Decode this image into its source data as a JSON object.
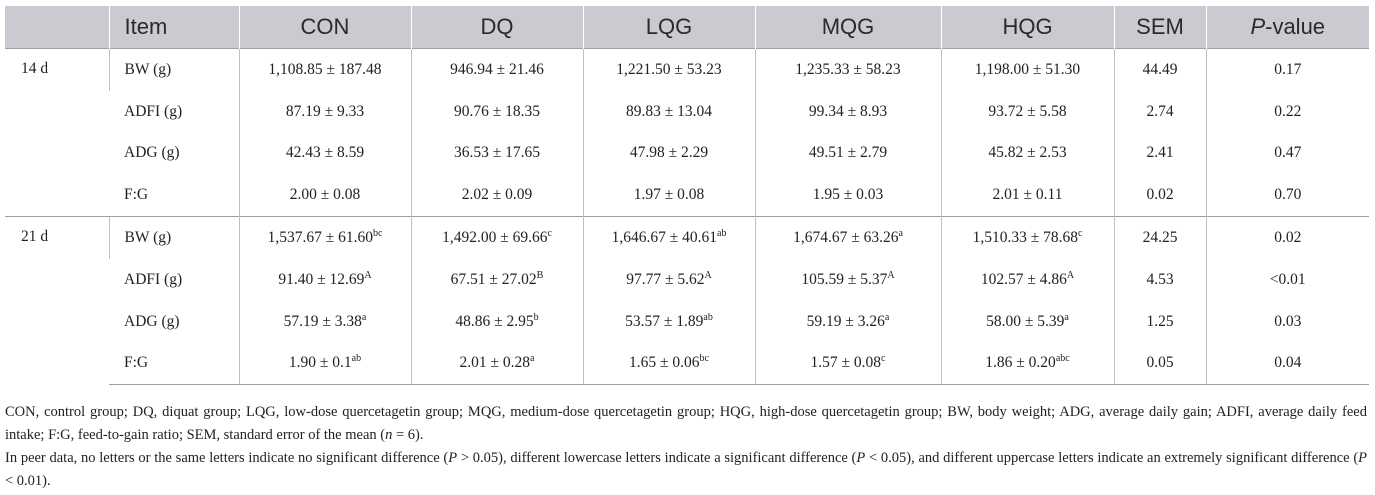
{
  "table": {
    "headers": [
      "",
      "Item",
      "CON",
      "DQ",
      "LQG",
      "MQG",
      "HQG",
      "SEM",
      "P",
      "-value"
    ],
    "groups": [
      {
        "label": "14 d",
        "rows": [
          {
            "item": "BW (g)",
            "cells": [
              {
                "v": "1,108.85 ± 187.48",
                "s": ""
              },
              {
                "v": "946.94 ± 21.46",
                "s": ""
              },
              {
                "v": "1,221.50 ± 53.23",
                "s": ""
              },
              {
                "v": "1,235.33 ± 58.23",
                "s": ""
              },
              {
                "v": "1,198.00 ± 51.30",
                "s": ""
              },
              {
                "v": "44.49",
                "s": ""
              },
              {
                "v": "0.17",
                "s": ""
              }
            ]
          },
          {
            "item": "ADFI (g)",
            "cells": [
              {
                "v": "87.19 ± 9.33",
                "s": ""
              },
              {
                "v": "90.76 ± 18.35",
                "s": ""
              },
              {
                "v": "89.83 ± 13.04",
                "s": ""
              },
              {
                "v": "99.34 ± 8.93",
                "s": ""
              },
              {
                "v": "93.72 ± 5.58",
                "s": ""
              },
              {
                "v": "2.74",
                "s": ""
              },
              {
                "v": "0.22",
                "s": ""
              }
            ]
          },
          {
            "item": "ADG (g)",
            "cells": [
              {
                "v": "42.43 ± 8.59",
                "s": ""
              },
              {
                "v": "36.53 ± 17.65",
                "s": ""
              },
              {
                "v": "47.98 ± 2.29",
                "s": ""
              },
              {
                "v": "49.51 ± 2.79",
                "s": ""
              },
              {
                "v": "45.82 ± 2.53",
                "s": ""
              },
              {
                "v": "2.41",
                "s": ""
              },
              {
                "v": "0.47",
                "s": ""
              }
            ]
          },
          {
            "item": "F:G",
            "cells": [
              {
                "v": "2.00 ± 0.08",
                "s": ""
              },
              {
                "v": "2.02 ± 0.09",
                "s": ""
              },
              {
                "v": "1.97 ± 0.08",
                "s": ""
              },
              {
                "v": "1.95 ± 0.03",
                "s": ""
              },
              {
                "v": "2.01 ± 0.11",
                "s": ""
              },
              {
                "v": "0.02",
                "s": ""
              },
              {
                "v": "0.70",
                "s": ""
              }
            ]
          }
        ]
      },
      {
        "label": "21 d",
        "rows": [
          {
            "item": "BW (g)",
            "cells": [
              {
                "v": "1,537.67 ± 61.60",
                "s": "bc"
              },
              {
                "v": "1,492.00 ± 69.66",
                "s": "c"
              },
              {
                "v": "1,646.67 ± 40.61",
                "s": "ab"
              },
              {
                "v": "1,674.67 ± 63.26",
                "s": "a"
              },
              {
                "v": "1,510.33 ± 78.68",
                "s": "c"
              },
              {
                "v": "24.25",
                "s": ""
              },
              {
                "v": "0.02",
                "s": ""
              }
            ]
          },
          {
            "item": "ADFI (g)",
            "cells": [
              {
                "v": "91.40 ± 12.69",
                "s": "A"
              },
              {
                "v": "67.51 ± 27.02",
                "s": "B"
              },
              {
                "v": "97.77 ± 5.62",
                "s": "A"
              },
              {
                "v": "105.59 ± 5.37",
                "s": "A"
              },
              {
                "v": "102.57 ± 4.86",
                "s": "A"
              },
              {
                "v": "4.53",
                "s": ""
              },
              {
                "v": "<0.01",
                "s": ""
              }
            ]
          },
          {
            "item": "ADG (g)",
            "cells": [
              {
                "v": "57.19 ± 3.38",
                "s": "a"
              },
              {
                "v": "48.86 ± 2.95",
                "s": "b"
              },
              {
                "v": "53.57 ± 1.89",
                "s": "ab"
              },
              {
                "v": "59.19 ± 3.26",
                "s": "a"
              },
              {
                "v": "58.00 ± 5.39",
                "s": "a"
              },
              {
                "v": "1.25",
                "s": ""
              },
              {
                "v": "0.03",
                "s": ""
              }
            ]
          },
          {
            "item": "F:G",
            "cells": [
              {
                "v": "1.90 ± 0.1",
                "s": "ab"
              },
              {
                "v": "2.01 ± 0.28",
                "s": "a"
              },
              {
                "v": "1.65 ± 0.06",
                "s": "bc"
              },
              {
                "v": "1.57 ± 0.08",
                "s": "c"
              },
              {
                "v": "1.86 ± 0.20",
                "s": "abc"
              },
              {
                "v": "0.05",
                "s": ""
              },
              {
                "v": "0.04",
                "s": ""
              }
            ]
          }
        ]
      }
    ]
  },
  "footnotes": {
    "abbreviations": "CON, control group; DQ, diquat group; LQG, low-dose quercetagetin group; MQG, medium-dose quercetagetin group; HQG, high-dose quercetagetin group; BW, body weight; ADG, average daily gain; ADFI, average daily feed intake; F:G, feed-to-gain ratio; SEM, standard error of the mean (n = 6).",
    "significance": "In peer data, no letters or the same letters indicate no significant difference (P > 0.05), different lowercase letters indicate a significant difference (P < 0.05), and different uppercase letters indicate an extremely significant difference (P < 0.01)."
  }
}
